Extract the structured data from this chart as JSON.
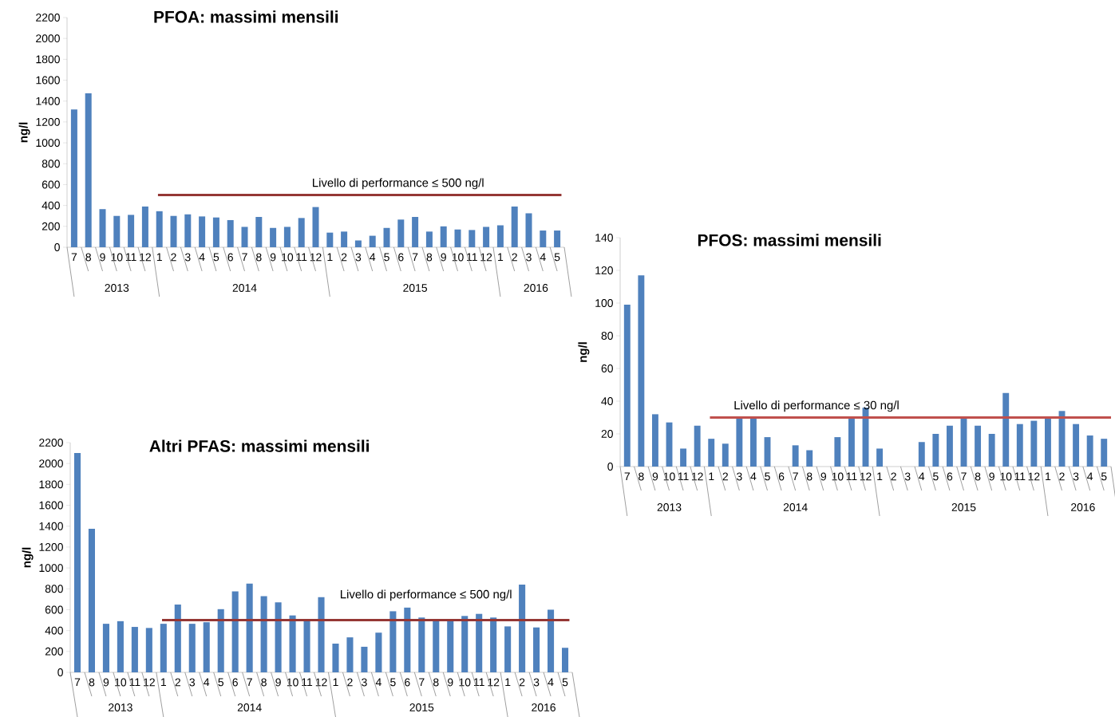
{
  "chart_data": [
    {
      "type": "bar",
      "title": "PFOA: massimi mensili",
      "ylabel": "ng/l",
      "categories": [
        "7",
        "8",
        "9",
        "10",
        "11",
        "12",
        "1",
        "2",
        "3",
        "4",
        "5",
        "6",
        "7",
        "8",
        "9",
        "10",
        "11",
        "12",
        "1",
        "2",
        "3",
        "4",
        "5",
        "6",
        "7",
        "8",
        "9",
        "10",
        "11",
        "12",
        "1",
        "2",
        "3",
        "4",
        "5"
      ],
      "values": [
        1320,
        1475,
        365,
        300,
        310,
        390,
        345,
        300,
        315,
        295,
        285,
        260,
        195,
        290,
        185,
        195,
        280,
        385,
        140,
        150,
        65,
        110,
        185,
        265,
        290,
        150,
        200,
        170,
        165,
        195,
        210,
        390,
        325,
        160,
        160
      ],
      "color": "#4f81bd",
      "ylim": [
        0,
        2200
      ],
      "yticks": [
        0,
        200,
        400,
        600,
        800,
        1000,
        1200,
        1400,
        1600,
        1800,
        2000,
        2200
      ],
      "ref_lines": [
        {
          "axis": "y",
          "value": 500,
          "label": "Livello di performance ≤ 500 ng/l",
          "color": "#953735"
        }
      ],
      "annotations": [
        "2013",
        "2014",
        "2015",
        "2016"
      ]
    },
    {
      "type": "bar",
      "title": "PFOS: massimi mensili",
      "ylabel": "ng/l",
      "categories": [
        "7",
        "8",
        "9",
        "10",
        "11",
        "12",
        "1",
        "2",
        "3",
        "4",
        "5",
        "6",
        "7",
        "8",
        "9",
        "10",
        "11",
        "12",
        "1",
        "2",
        "3",
        "4",
        "5",
        "6",
        "7",
        "8",
        "9",
        "10",
        "11",
        "12",
        "1",
        "2",
        "3",
        "4",
        "5"
      ],
      "values": [
        99,
        117,
        32,
        27,
        11,
        25,
        17,
        14,
        30,
        30,
        18,
        0,
        13,
        10,
        0,
        18,
        30,
        36,
        11,
        0,
        0,
        15,
        20,
        25,
        30,
        25,
        20,
        45,
        26,
        28,
        30,
        34,
        26,
        19,
        17
      ],
      "color": "#4f81bd",
      "ylim": [
        0,
        140
      ],
      "yticks": [
        0,
        20,
        40,
        60,
        80,
        100,
        120,
        140
      ],
      "ref_lines": [
        {
          "axis": "y",
          "value": 30,
          "label": "Livello di performance ≤ 30 ng/l",
          "color": "#c0504d"
        }
      ],
      "annotations": [
        "2013",
        "2014",
        "2015",
        "2016"
      ]
    },
    {
      "type": "bar",
      "title": "Altri PFAS: massimi mensili",
      "ylabel": "ng/l",
      "categories": [
        "7",
        "8",
        "9",
        "10",
        "11",
        "12",
        "1",
        "2",
        "3",
        "4",
        "5",
        "6",
        "7",
        "8",
        "9",
        "10",
        "11",
        "12",
        "1",
        "2",
        "3",
        "4",
        "5",
        "6",
        "7",
        "8",
        "9",
        "10",
        "11",
        "12",
        "1",
        "2",
        "3",
        "4",
        "5"
      ],
      "values": [
        2100,
        1375,
        465,
        490,
        435,
        425,
        465,
        650,
        465,
        480,
        605,
        775,
        850,
        730,
        670,
        545,
        490,
        720,
        275,
        335,
        245,
        380,
        585,
        620,
        525,
        500,
        500,
        540,
        560,
        525,
        440,
        840,
        430,
        600,
        235
      ],
      "color": "#4f81bd",
      "ylim": [
        0,
        2200
      ],
      "yticks": [
        0,
        200,
        400,
        600,
        800,
        1000,
        1200,
        1400,
        1600,
        1800,
        2000,
        2200
      ],
      "ref_lines": [
        {
          "axis": "y",
          "value": 500,
          "label": "Livello di performance ≤ 500 ng/l",
          "color": "#953735"
        }
      ],
      "annotations": [
        "2013",
        "2014",
        "2015",
        "2016"
      ]
    }
  ]
}
